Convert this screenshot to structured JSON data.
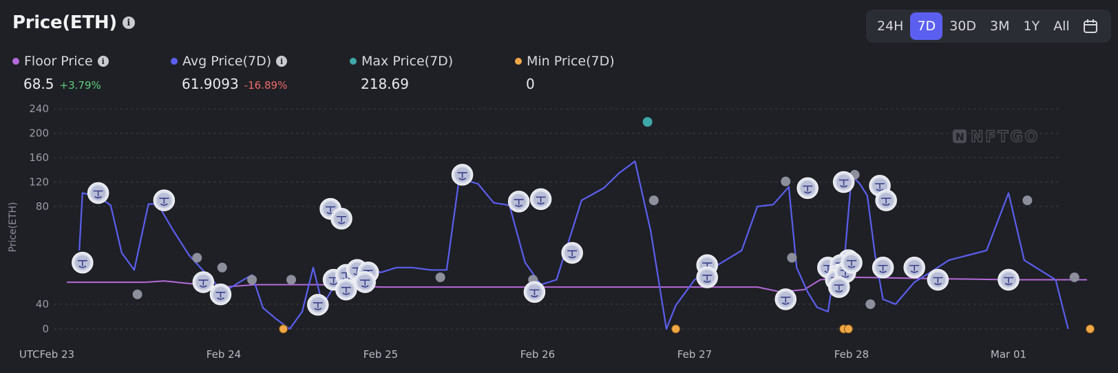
{
  "header": {
    "title": "Price(ETH)",
    "ranges": [
      "24H",
      "7D",
      "30D",
      "3M",
      "1Y",
      "All"
    ],
    "active_range": "7D"
  },
  "stats": [
    {
      "label": "Floor Price",
      "value": "68.5",
      "change": "+3.79%",
      "trend": "up",
      "color": "#b46ad8",
      "has_info": true
    },
    {
      "label": "Avg Price(7D)",
      "value": "61.9093",
      "change": "-16.89%",
      "trend": "down",
      "color": "#5b5ff0",
      "has_info": true
    },
    {
      "label": "Max Price(7D)",
      "value": "218.69",
      "change": "",
      "trend": "",
      "color": "#3fa7a8",
      "has_info": false
    },
    {
      "label": "Min Price(7D)",
      "value": "0",
      "change": "",
      "trend": "",
      "color": "#f0a847",
      "has_info": false
    }
  ],
  "watermark": "NFTGO",
  "chart_data": {
    "type": "line",
    "ylabel": "Price(ETH)",
    "y_ticks": [
      "240",
      "200",
      "160",
      "120",
      "80",
      "40",
      "0"
    ],
    "x_ticks": [
      "UTCFeb 23",
      "Feb 24",
      "Feb 25",
      "Feb 26",
      "Feb 27",
      "Feb 28",
      "Mar 01"
    ],
    "grid": "dashed horizontal",
    "colors": {
      "avg": "#5b5ff0",
      "floor": "#b46ad8",
      "max": "#3fa7a8",
      "min": "#f0a847",
      "sale": "#8d8f9c"
    },
    "series": [
      {
        "key": "avg",
        "x": [
          23.08,
          23.1,
          23.2,
          23.28,
          23.35,
          23.43,
          23.52,
          23.58,
          23.68,
          23.78,
          23.88,
          24.0,
          24.1,
          24.18,
          24.25,
          24.33,
          24.42,
          24.5,
          24.57,
          24.63,
          24.7,
          24.78,
          24.85,
          24.92,
          25.0,
          25.1,
          25.2,
          25.32,
          25.42,
          25.5,
          25.62,
          25.72,
          25.82,
          25.92,
          26.02,
          26.12,
          26.28,
          26.42,
          26.52,
          26.62,
          26.72,
          26.82,
          26.88,
          27.0,
          27.12,
          27.3,
          27.4,
          27.5,
          27.6,
          27.65,
          27.72,
          27.78,
          27.85,
          27.9,
          27.95,
          28.0,
          28.05,
          28.1,
          28.15,
          28.2,
          28.28,
          28.4,
          28.5,
          28.62,
          28.74,
          28.86,
          29.0,
          29.1,
          29.2,
          29.3,
          29.38
        ],
        "y": [
          62,
          102,
          96,
          82,
          61,
          54,
          84,
          84,
          70,
          60,
          53,
          45,
          49,
          52,
          34,
          17,
          0,
          28,
          55,
          38,
          47,
          55,
          58,
          55,
          53,
          55,
          55,
          54,
          54,
          126,
          117,
          86,
          82,
          57,
          48,
          50,
          90,
          110,
          135,
          154,
          70,
          0,
          38,
          50,
          55,
          62,
          80,
          83,
          112,
          55,
          45,
          35,
          28,
          58,
          55,
          130,
          118,
          98,
          60,
          42,
          40,
          49,
          53,
          58,
          60,
          62,
          102,
          58,
          54,
          50,
          0
        ]
      },
      {
        "key": "floor",
        "x": [
          23.0,
          23.5,
          23.62,
          23.7,
          24.0,
          24.2,
          24.6,
          25.0,
          25.5,
          26.0,
          26.5,
          27.0,
          27.4,
          27.55,
          27.7,
          27.8,
          28.0,
          28.5,
          29.0,
          29.5
        ],
        "y": [
          49,
          49,
          49.5,
          49,
          47,
          48,
          48,
          47,
          47,
          47,
          47,
          47,
          47,
          45,
          46,
          50,
          51,
          50.5,
          50,
          50
        ]
      },
      {
        "key": "max",
        "x": [
          26.7
        ],
        "y": [
          218.69
        ]
      },
      {
        "key": "min",
        "x": [
          24.38,
          26.88,
          27.95,
          27.98,
          29.52
        ],
        "y": [
          0,
          0,
          0,
          0,
          0
        ]
      },
      {
        "key": "sale_nft",
        "x": [
          23.1,
          23.2,
          23.62,
          23.87,
          23.98,
          24.68,
          24.75,
          24.7,
          24.78,
          24.85,
          24.92,
          24.6,
          24.78,
          24.9,
          25.52,
          25.88,
          26.02,
          25.98,
          26.22,
          27.08,
          27.08,
          27.58,
          27.72,
          27.85,
          27.95,
          27.98,
          27.93,
          27.92,
          27.9,
          27.96,
          27.92,
          28.0,
          28.18,
          28.22,
          28.2,
          28.4,
          28.55,
          29.0
        ],
        "y": [
          57,
          102,
          90,
          49,
          44,
          79,
          75,
          50,
          52,
          54,
          53,
          39,
          46,
          49,
          132,
          88,
          92,
          45,
          61,
          56,
          51,
          42,
          110,
          55,
          120,
          58,
          56,
          52,
          50,
          53,
          47,
          57,
          114,
          90,
          55,
          55,
          50,
          50
        ]
      },
      {
        "key": "sale",
        "x": [
          23.45,
          23.83,
          23.99,
          24.18,
          24.43,
          25.38,
          25.97,
          26.74,
          27.58,
          27.62,
          28.02,
          28.12,
          29.12,
          29.42
        ],
        "y": [
          44,
          59,
          55,
          50,
          50,
          51,
          50,
          90,
          121,
          59,
          132,
          40,
          90,
          51
        ]
      }
    ]
  }
}
